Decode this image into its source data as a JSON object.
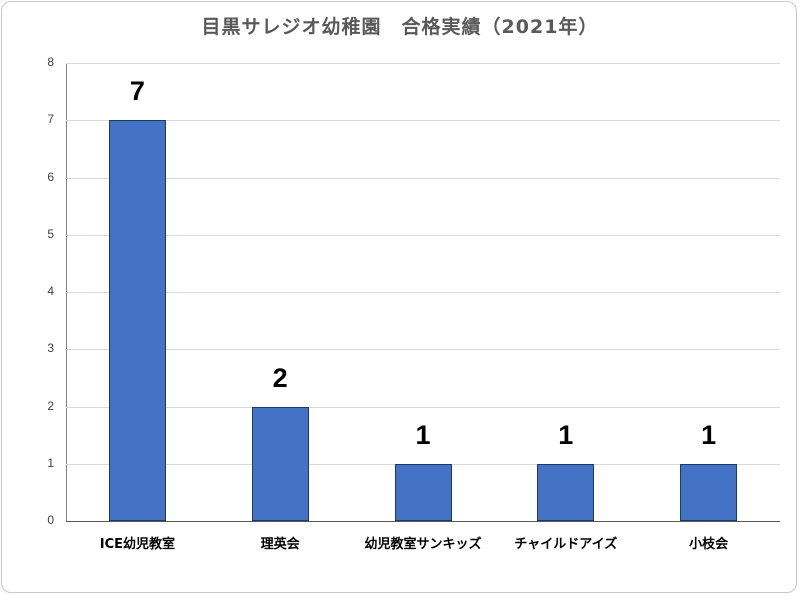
{
  "chart_data": {
    "type": "bar",
    "title": "目黒サレジオ幼稚園　合格実績（2021年）",
    "categories": [
      "ICE幼児教室",
      "理英会",
      "幼児教室サンキッズ",
      "チャイルドアイズ",
      "小枝会"
    ],
    "values": [
      7,
      2,
      1,
      1,
      1
    ],
    "data_labels": [
      "7",
      "2",
      "1",
      "1",
      "1"
    ],
    "xlabel": "",
    "ylabel": "",
    "ylim": [
      0,
      8
    ],
    "yticks": [
      "0",
      "1",
      "2",
      "3",
      "4",
      "5",
      "6",
      "7",
      "8"
    ],
    "grid": true,
    "legend": "none",
    "bar_color": "#4472c4"
  }
}
